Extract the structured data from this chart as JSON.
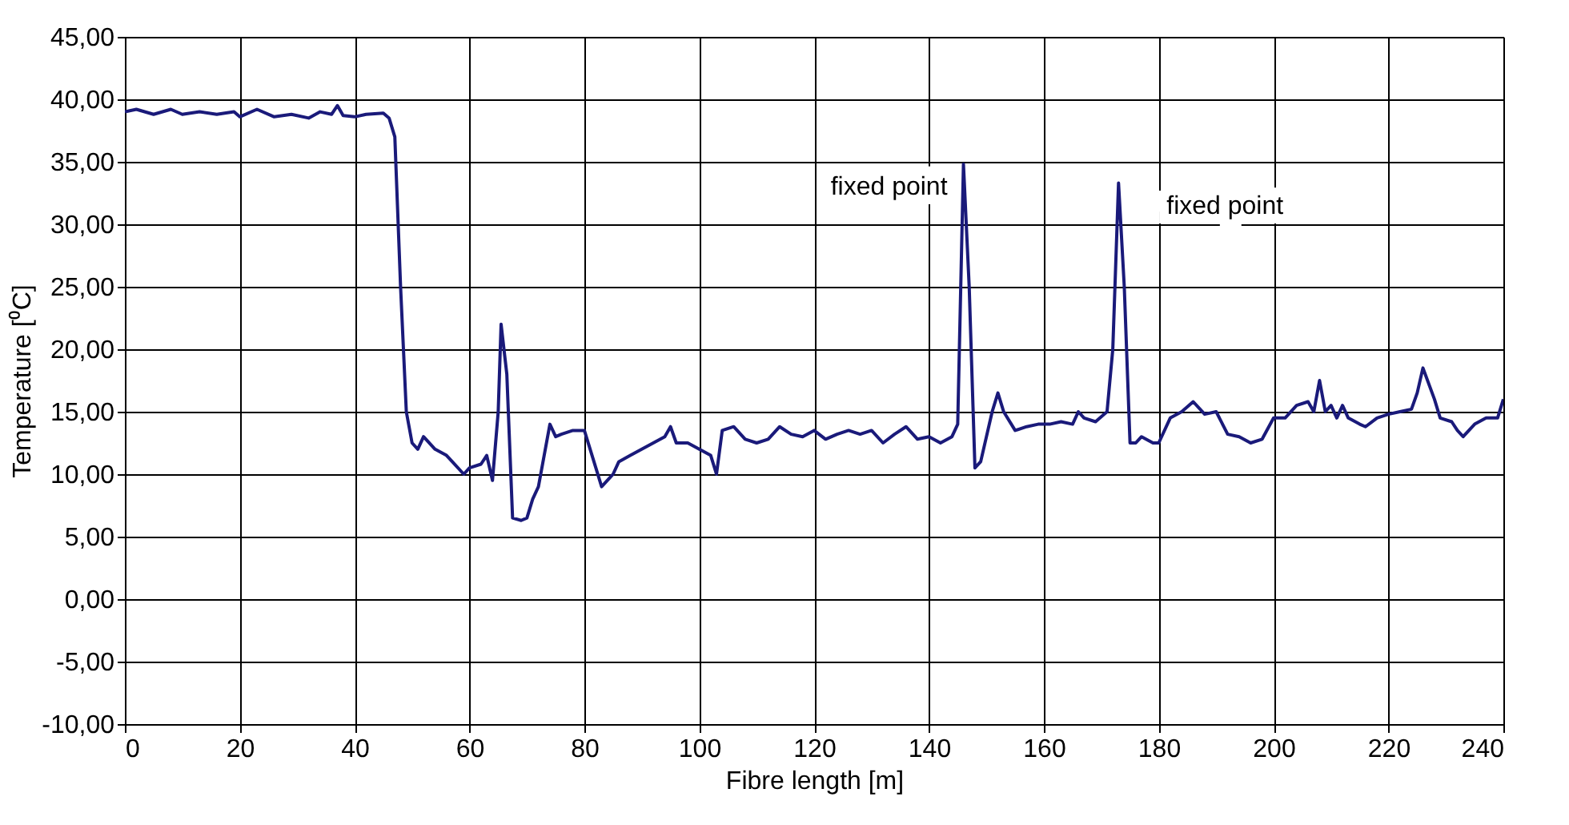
{
  "chart_data": {
    "type": "line",
    "xlabel": "Fibre length [m]",
    "ylabel": "Temperature [⁰C]",
    "xlim": [
      0,
      240
    ],
    "xticks": [
      0,
      20,
      40,
      60,
      80,
      100,
      120,
      140,
      160,
      180,
      200,
      220,
      240
    ],
    "ylim": [
      -10,
      45
    ],
    "yticks": [
      {
        "value": -10,
        "label": "-10,00"
      },
      {
        "value": -5,
        "label": "-5,00"
      },
      {
        "value": 0,
        "label": "0,00"
      },
      {
        "value": 5,
        "label": "5,00"
      },
      {
        "value": 10,
        "label": "10,00"
      },
      {
        "value": 15,
        "label": "15,00"
      },
      {
        "value": 20,
        "label": "20,00"
      },
      {
        "value": 25,
        "label": "25,00"
      },
      {
        "value": 30,
        "label": "30,00"
      },
      {
        "value": 35,
        "label": "35,00"
      },
      {
        "value": 40,
        "label": "40,00"
      },
      {
        "value": 45,
        "label": "45,00"
      }
    ],
    "grid": true,
    "marker": "none",
    "line_style": "solid",
    "annotations": [
      {
        "text": "fixed point",
        "x": 146,
        "y": 34.8
      },
      {
        "text": "fixed point",
        "x": 173,
        "y": 33.3
      }
    ],
    "series": [
      {
        "color": "#1a1a7a",
        "x": [
          0,
          2,
          5,
          8,
          10,
          13,
          16,
          19,
          20,
          23,
          26,
          29,
          32,
          34,
          36,
          37,
          38,
          40,
          42,
          45,
          46,
          47,
          48,
          49,
          50,
          51,
          52,
          54,
          56,
          57,
          59,
          60,
          62,
          63,
          64,
          65,
          65.5,
          66.5,
          67.5,
          69,
          70,
          71,
          72,
          74,
          75,
          76,
          78,
          80,
          82,
          83,
          85,
          86,
          88,
          90,
          92,
          94,
          95,
          96,
          98,
          100,
          102,
          103,
          104,
          106,
          108,
          110,
          112,
          114,
          116,
          118,
          120,
          122,
          124,
          126,
          128,
          130,
          132,
          134,
          136,
          138,
          140,
          142,
          144,
          145,
          146,
          147,
          148,
          149,
          151,
          152,
          153,
          155,
          157,
          159,
          161,
          163,
          165,
          166,
          167,
          169,
          171,
          172,
          173,
          174,
          175,
          176,
          177,
          179,
          180,
          182,
          184,
          186,
          188,
          190,
          192,
          194,
          196,
          198,
          200,
          202,
          204,
          206,
          207,
          208,
          209,
          210,
          211,
          212,
          213,
          215,
          216,
          218,
          220,
          222,
          224,
          225,
          226,
          228,
          229,
          231,
          232,
          233,
          235,
          237,
          239,
          240
        ],
        "values": [
          39,
          39.2,
          38.8,
          39.2,
          38.8,
          39,
          38.8,
          39,
          38.6,
          39.2,
          38.6,
          38.8,
          38.5,
          39,
          38.8,
          39.5,
          38.7,
          38.6,
          38.8,
          38.9,
          38.5,
          37,
          25,
          15,
          12.5,
          12,
          13,
          12,
          11.5,
          11,
          10,
          10.5,
          10.8,
          11.5,
          9.5,
          15,
          22,
          18,
          6.5,
          6.3,
          6.5,
          8,
          9,
          14,
          13,
          13.2,
          13.5,
          13.5,
          10.5,
          9,
          10,
          11,
          11.5,
          12,
          12.5,
          13,
          13.8,
          12.5,
          12.5,
          12,
          11.5,
          10,
          13.5,
          13.8,
          12.8,
          12.5,
          12.8,
          13.8,
          13.2,
          13,
          13.5,
          12.8,
          13.2,
          13.5,
          13.2,
          13.5,
          12.5,
          13.2,
          13.8,
          12.8,
          13,
          12.5,
          13,
          14,
          34.8,
          25,
          10.5,
          11,
          15,
          16.5,
          15,
          13.5,
          13.8,
          14,
          14,
          14.2,
          14,
          15,
          14.5,
          14.2,
          15,
          20,
          33.3,
          25,
          12.5,
          12.5,
          13,
          12.5,
          12.5,
          14.5,
          15,
          15.8,
          14.8,
          15,
          13.2,
          13,
          12.5,
          12.8,
          14.5,
          14.5,
          15.5,
          15.8,
          15,
          17.5,
          15,
          15.5,
          14.5,
          15.5,
          14.5,
          14,
          13.8,
          14.5,
          14.8,
          15,
          15.2,
          16.5,
          18.5,
          16,
          14.5,
          14.2,
          13.5,
          13,
          14,
          14.5,
          14.5,
          16
        ]
      }
    ]
  }
}
